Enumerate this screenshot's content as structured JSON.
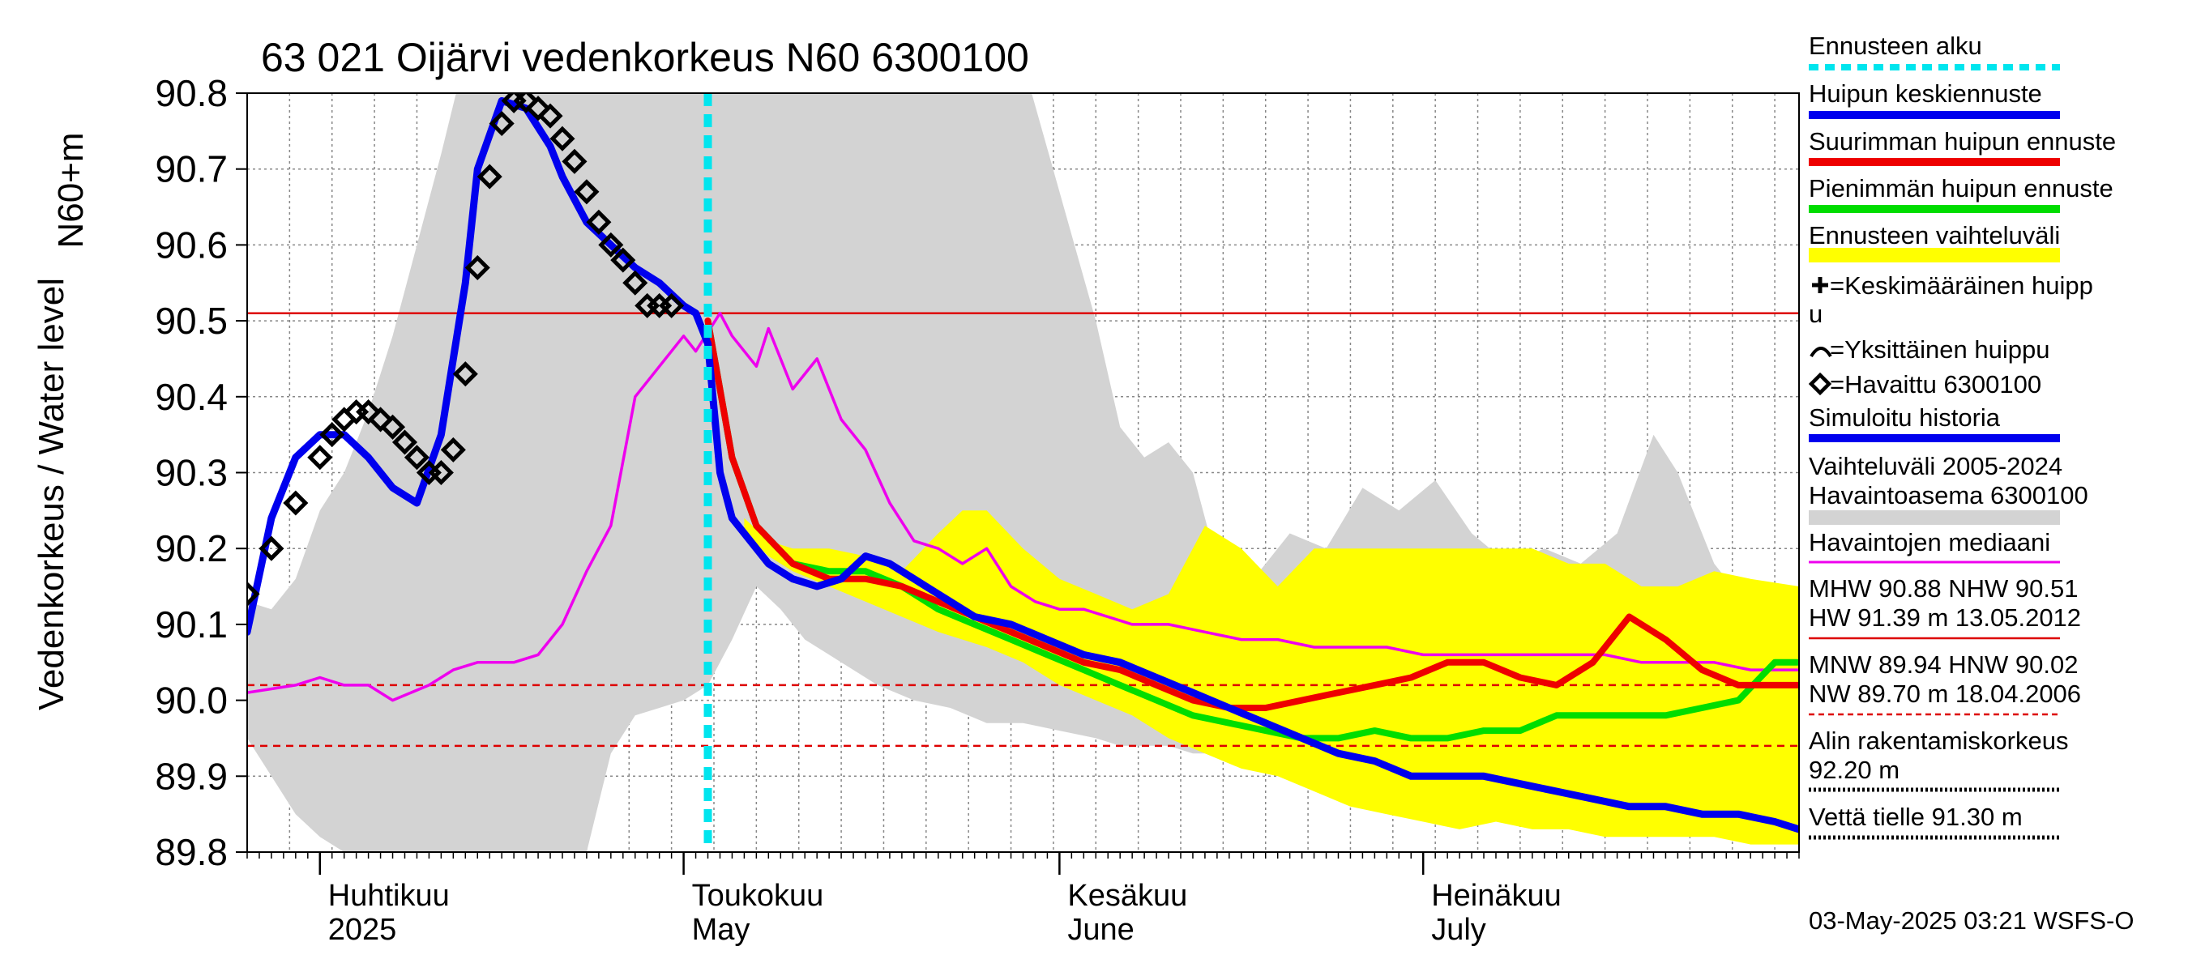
{
  "chart_data": {
    "type": "line",
    "title": "63 021 Oijärvi vedenkorkeus N60 6300100",
    "ylabel_main": "Vedenkorkeus / Water level",
    "ylabel_unit": "N60+m",
    "ylim": [
      89.8,
      90.8
    ],
    "y_ticks": [
      "89.8",
      "89.9",
      "90.0",
      "90.1",
      "90.2",
      "90.3",
      "90.4",
      "90.5",
      "90.6",
      "90.7",
      "90.8"
    ],
    "x_range": [
      "2025-03-26",
      "2025-08-01"
    ],
    "month_labels": [
      {
        "line1": "Huhtikuu",
        "line2": "2025",
        "start": "2025-04-01"
      },
      {
        "line1": "Toukokuu",
        "line2": "May",
        "start": "2025-05-01"
      },
      {
        "line1": "Kesäkuu",
        "line2": "June",
        "start": "2025-06-01"
      },
      {
        "line1": "Heinäkuu",
        "line2": "July",
        "start": "2025-07-01"
      }
    ],
    "forecast_start": "2025-05-03",
    "reference_lines": [
      {
        "name": "NHW",
        "value": 90.51,
        "style": "solid"
      },
      {
        "name": "HNW",
        "value": 90.02,
        "style": "dashed"
      },
      {
        "name": "MNW",
        "value": 89.94,
        "style": "dashed"
      }
    ],
    "colors": {
      "forecast_start": "#00e5ee",
      "mean_forecast": "#0000ee",
      "max_forecast": "#ee0000",
      "min_forecast": "#00dd00",
      "forecast_range": "#ffff00",
      "history_range": "#d3d3d3",
      "median": "#ee00ee",
      "reference": "#dd0000",
      "grid": "#888888"
    },
    "series": {
      "history_range": {
        "x": [
          "2025-03-26",
          "2025-03-28",
          "2025-03-30",
          "2025-04-01",
          "2025-04-03",
          "2025-04-05",
          "2025-04-07",
          "2025-04-09",
          "2025-04-11",
          "2025-04-13",
          "2025-04-15",
          "2025-04-17",
          "2025-04-19",
          "2025-04-21",
          "2025-04-23",
          "2025-04-25",
          "2025-04-27",
          "2025-04-29",
          "2025-05-01",
          "2025-05-03",
          "2025-05-05",
          "2025-05-07",
          "2025-05-09",
          "2025-05-11",
          "2025-05-14",
          "2025-05-17",
          "2025-05-20",
          "2025-05-23",
          "2025-05-26",
          "2025-05-29",
          "2025-06-01",
          "2025-06-04",
          "2025-06-06",
          "2025-06-08",
          "2025-06-10",
          "2025-06-12",
          "2025-06-14",
          "2025-06-17",
          "2025-06-20",
          "2025-06-23",
          "2025-06-26",
          "2025-06-29",
          "2025-07-02",
          "2025-07-05",
          "2025-07-08",
          "2025-07-11",
          "2025-07-14",
          "2025-07-17",
          "2025-07-20",
          "2025-07-22",
          "2025-07-25",
          "2025-07-28",
          "2025-08-01"
        ],
        "upper": [
          90.13,
          90.12,
          90.16,
          90.25,
          90.3,
          90.38,
          90.48,
          90.6,
          90.72,
          90.85,
          90.9,
          90.9,
          90.9,
          90.9,
          90.9,
          90.9,
          90.9,
          90.9,
          90.9,
          90.9,
          90.9,
          90.9,
          90.9,
          90.9,
          90.9,
          90.9,
          90.9,
          90.9,
          90.9,
          90.84,
          90.67,
          90.5,
          90.36,
          90.32,
          90.34,
          90.3,
          90.18,
          90.16,
          90.22,
          90.2,
          90.28,
          90.25,
          90.29,
          90.22,
          90.18,
          90.2,
          90.18,
          90.22,
          90.35,
          90.3,
          90.18,
          90.12,
          90.1
        ],
        "lower": [
          89.95,
          89.9,
          89.85,
          89.82,
          89.8,
          89.79,
          89.79,
          89.79,
          89.79,
          89.79,
          89.79,
          89.79,
          89.79,
          89.79,
          89.8,
          89.93,
          89.98,
          89.99,
          90.0,
          90.02,
          90.08,
          90.15,
          90.12,
          90.08,
          90.05,
          90.02,
          90.0,
          89.99,
          89.97,
          89.97,
          89.96,
          89.95,
          89.94,
          89.94,
          89.94,
          89.93,
          89.93,
          89.93,
          89.92,
          89.92,
          89.91,
          89.91,
          89.9,
          89.9,
          89.89,
          89.88,
          89.87,
          89.87,
          89.86,
          89.86,
          89.85,
          89.85,
          89.84
        ]
      },
      "forecast_range": {
        "x": [
          "2025-05-06",
          "2025-05-08",
          "2025-05-10",
          "2025-05-13",
          "2025-05-16",
          "2025-05-19",
          "2025-05-22",
          "2025-05-24",
          "2025-05-26",
          "2025-05-29",
          "2025-06-01",
          "2025-06-04",
          "2025-06-07",
          "2025-06-10",
          "2025-06-13",
          "2025-06-16",
          "2025-06-19",
          "2025-06-22",
          "2025-06-25",
          "2025-06-28",
          "2025-07-01",
          "2025-07-04",
          "2025-07-07",
          "2025-07-10",
          "2025-07-13",
          "2025-07-16",
          "2025-07-19",
          "2025-07-22",
          "2025-07-25",
          "2025-07-28",
          "2025-08-01"
        ],
        "upper": [
          90.24,
          90.21,
          90.2,
          90.2,
          90.19,
          90.17,
          90.22,
          90.25,
          90.25,
          90.2,
          90.16,
          90.14,
          90.12,
          90.14,
          90.23,
          90.2,
          90.15,
          90.2,
          90.2,
          90.2,
          90.2,
          90.2,
          90.2,
          90.2,
          90.18,
          90.18,
          90.15,
          90.15,
          90.17,
          90.16,
          90.15
        ],
        "lower": [
          90.22,
          90.19,
          90.17,
          90.15,
          90.13,
          90.11,
          90.09,
          90.08,
          90.07,
          90.05,
          90.02,
          90.0,
          89.98,
          89.95,
          89.93,
          89.91,
          89.9,
          89.88,
          89.86,
          89.85,
          89.84,
          89.83,
          89.84,
          89.83,
          89.83,
          89.82,
          89.82,
          89.82,
          89.82,
          89.81,
          89.81
        ]
      },
      "median": {
        "name": "Havaintojen mediaani",
        "x": [
          "2025-03-26",
          "2025-03-30",
          "2025-04-01",
          "2025-04-03",
          "2025-04-05",
          "2025-04-07",
          "2025-04-10",
          "2025-04-12",
          "2025-04-14",
          "2025-04-17",
          "2025-04-19",
          "2025-04-21",
          "2025-04-23",
          "2025-04-25",
          "2025-04-27",
          "2025-04-29",
          "2025-05-01",
          "2025-05-02",
          "2025-05-04",
          "2025-05-05",
          "2025-05-07",
          "2025-05-08",
          "2025-05-10",
          "2025-05-12",
          "2025-05-14",
          "2025-05-16",
          "2025-05-18",
          "2025-05-20",
          "2025-05-22",
          "2025-05-24",
          "2025-05-26",
          "2025-05-28",
          "2025-05-30",
          "2025-06-01",
          "2025-06-03",
          "2025-06-05",
          "2025-06-07",
          "2025-06-10",
          "2025-06-13",
          "2025-06-16",
          "2025-06-19",
          "2025-06-22",
          "2025-06-25",
          "2025-06-28",
          "2025-07-01",
          "2025-07-04",
          "2025-07-07",
          "2025-07-10",
          "2025-07-13",
          "2025-07-16",
          "2025-07-19",
          "2025-07-22",
          "2025-07-25",
          "2025-07-28",
          "2025-08-01"
        ],
        "y": [
          90.01,
          90.02,
          90.03,
          90.02,
          90.02,
          90.0,
          90.02,
          90.04,
          90.05,
          90.05,
          90.06,
          90.1,
          90.17,
          90.23,
          90.4,
          90.44,
          90.48,
          90.46,
          90.51,
          90.48,
          90.44,
          90.49,
          90.41,
          90.45,
          90.37,
          90.33,
          90.26,
          90.21,
          90.2,
          90.18,
          90.2,
          90.15,
          90.13,
          90.12,
          90.12,
          90.11,
          90.1,
          90.1,
          90.09,
          90.08,
          90.08,
          90.07,
          90.07,
          90.07,
          90.06,
          90.06,
          90.06,
          90.06,
          90.06,
          90.06,
          90.05,
          90.05,
          90.05,
          90.04,
          90.04
        ]
      },
      "max_forecast": {
        "name": "Suurimman huipun ennuste",
        "x": [
          "2025-05-03",
          "2025-05-05",
          "2025-05-07",
          "2025-05-10",
          "2025-05-13",
          "2025-05-16",
          "2025-05-19",
          "2025-05-22",
          "2025-05-25",
          "2025-05-28",
          "2025-05-31",
          "2025-06-03",
          "2025-06-06",
          "2025-06-09",
          "2025-06-12",
          "2025-06-15",
          "2025-06-18",
          "2025-06-21",
          "2025-06-24",
          "2025-06-27",
          "2025-06-30",
          "2025-07-03",
          "2025-07-06",
          "2025-07-09",
          "2025-07-12",
          "2025-07-15",
          "2025-07-18",
          "2025-07-21",
          "2025-07-24",
          "2025-07-27",
          "2025-07-30",
          "2025-08-01"
        ],
        "y": [
          90.5,
          90.32,
          90.23,
          90.18,
          90.16,
          90.16,
          90.15,
          90.13,
          90.11,
          90.09,
          90.07,
          90.05,
          90.04,
          90.02,
          90.0,
          89.99,
          89.99,
          90.0,
          90.01,
          90.02,
          90.03,
          90.05,
          90.05,
          90.03,
          90.02,
          90.05,
          90.11,
          90.08,
          90.04,
          90.02,
          90.02,
          90.02
        ]
      },
      "min_forecast": {
        "name": "Pienimmän huipun ennuste",
        "x": [
          "2025-05-03",
          "2025-05-05",
          "2025-05-07",
          "2025-05-10",
          "2025-05-13",
          "2025-05-16",
          "2025-05-19",
          "2025-05-22",
          "2025-05-25",
          "2025-05-28",
          "2025-05-31",
          "2025-06-03",
          "2025-06-06",
          "2025-06-09",
          "2025-06-12",
          "2025-06-15",
          "2025-06-18",
          "2025-06-21",
          "2025-06-24",
          "2025-06-27",
          "2025-06-30",
          "2025-07-03",
          "2025-07-06",
          "2025-07-09",
          "2025-07-12",
          "2025-07-15",
          "2025-07-18",
          "2025-07-21",
          "2025-07-24",
          "2025-07-27",
          "2025-07-30",
          "2025-08-01"
        ],
        "y": [
          90.5,
          90.32,
          90.23,
          90.18,
          90.17,
          90.17,
          90.15,
          90.12,
          90.1,
          90.08,
          90.06,
          90.04,
          90.02,
          90.0,
          89.98,
          89.97,
          89.96,
          89.95,
          89.95,
          89.96,
          89.95,
          89.95,
          89.96,
          89.96,
          89.98,
          89.98,
          89.98,
          89.98,
          89.99,
          90.0,
          90.05,
          90.05
        ]
      },
      "mean_forecast": {
        "name": "Huipun keskiennuste",
        "x": [
          "2025-03-26",
          "2025-03-28",
          "2025-03-30",
          "2025-04-01",
          "2025-04-03",
          "2025-04-05",
          "2025-04-07",
          "2025-04-09",
          "2025-04-11",
          "2025-04-13",
          "2025-04-14",
          "2025-04-16",
          "2025-04-18",
          "2025-04-20",
          "2025-04-21",
          "2025-04-22",
          "2025-04-23",
          "2025-04-25",
          "2025-04-27",
          "2025-04-29",
          "2025-05-01",
          "2025-05-02",
          "2025-05-03",
          "2025-05-04",
          "2025-05-05",
          "2025-05-06",
          "2025-05-08",
          "2025-05-10",
          "2025-05-12",
          "2025-05-14",
          "2025-05-16",
          "2025-05-18",
          "2025-05-20",
          "2025-05-22",
          "2025-05-25",
          "2025-05-28",
          "2025-05-31",
          "2025-06-03",
          "2025-06-06",
          "2025-06-09",
          "2025-06-12",
          "2025-06-15",
          "2025-06-18",
          "2025-06-21",
          "2025-06-24",
          "2025-06-27",
          "2025-06-30",
          "2025-07-03",
          "2025-07-06",
          "2025-07-09",
          "2025-07-12",
          "2025-07-15",
          "2025-07-18",
          "2025-07-21",
          "2025-07-24",
          "2025-07-27",
          "2025-07-30",
          "2025-08-01"
        ],
        "y": [
          90.09,
          90.24,
          90.32,
          90.35,
          90.35,
          90.32,
          90.28,
          90.26,
          90.35,
          90.55,
          90.7,
          90.79,
          90.78,
          90.73,
          90.69,
          90.66,
          90.63,
          90.6,
          90.57,
          90.55,
          90.52,
          90.51,
          90.47,
          90.3,
          90.24,
          90.22,
          90.18,
          90.16,
          90.15,
          90.16,
          90.19,
          90.18,
          90.16,
          90.14,
          90.11,
          90.1,
          90.08,
          90.06,
          90.05,
          90.03,
          90.01,
          89.99,
          89.97,
          89.95,
          89.93,
          89.92,
          89.9,
          89.9,
          89.9,
          89.89,
          89.88,
          89.87,
          89.86,
          89.86,
          89.85,
          89.85,
          89.84,
          89.83
        ]
      },
      "observed": {
        "name": "Havaittu 6300100",
        "x": [
          "2025-03-26",
          "2025-03-28",
          "2025-03-30",
          "2025-04-01",
          "2025-04-02",
          "2025-04-03",
          "2025-04-04",
          "2025-04-05",
          "2025-04-06",
          "2025-04-07",
          "2025-04-08",
          "2025-04-09",
          "2025-04-10",
          "2025-04-11",
          "2025-04-12",
          "2025-04-13",
          "2025-04-14",
          "2025-04-15",
          "2025-04-16",
          "2025-04-17",
          "2025-04-18",
          "2025-04-19",
          "2025-04-20",
          "2025-04-21",
          "2025-04-22",
          "2025-04-23",
          "2025-04-24",
          "2025-04-25",
          "2025-04-26",
          "2025-04-27",
          "2025-04-28",
          "2025-04-29",
          "2025-04-30"
        ],
        "y": [
          90.14,
          90.2,
          90.26,
          90.32,
          90.35,
          90.37,
          90.38,
          90.38,
          90.37,
          90.36,
          90.34,
          90.32,
          90.3,
          90.3,
          90.33,
          90.43,
          90.57,
          90.69,
          90.76,
          90.79,
          90.79,
          90.78,
          90.77,
          90.74,
          90.71,
          90.67,
          90.63,
          90.6,
          90.58,
          90.55,
          90.52,
          90.52,
          90.52
        ]
      }
    },
    "legend": [
      {
        "key": "forecast_start",
        "label": "Ennusteen alku"
      },
      {
        "key": "mean_forecast",
        "label": "Huipun keskiennuste"
      },
      {
        "key": "max_forecast",
        "label": "Suurimman huipun ennuste"
      },
      {
        "key": "min_forecast",
        "label": "Pienimmän huipun ennuste"
      },
      {
        "key": "forecast_range",
        "label": "Ennusteen vaihteluväli"
      },
      {
        "key": "mean_peak",
        "label": "=Keskimääräinen huipp",
        "label2": "u"
      },
      {
        "key": "single_peak",
        "label": "=Yksittäinen huippu"
      },
      {
        "key": "observed",
        "label": "=Havaittu 6300100"
      },
      {
        "key": "simulated",
        "label": "Simuloitu historia"
      },
      {
        "key": "history_range",
        "label": "Vaihteluväli 2005-2024",
        "label2": " Havaintoasema 6300100"
      },
      {
        "key": "median",
        "label": "Havaintojen mediaani"
      },
      {
        "key": "stats_high",
        "label": "MHW  90.88 NHW  90.51",
        "label2": "HW  91.39 m 13.05.2012"
      },
      {
        "key": "stats_low",
        "label": "MNW  89.94 HNW  90.02",
        "label2": "NW  89.70 m 18.04.2006"
      },
      {
        "key": "build_level",
        "label": "Alin rakentamiskorkeus",
        "label2": "92.20 m"
      },
      {
        "key": "road_level",
        "label": "Vettä tielle 91.30 m"
      }
    ],
    "timestamp": "03-May-2025 03:21 WSFS-O"
  }
}
